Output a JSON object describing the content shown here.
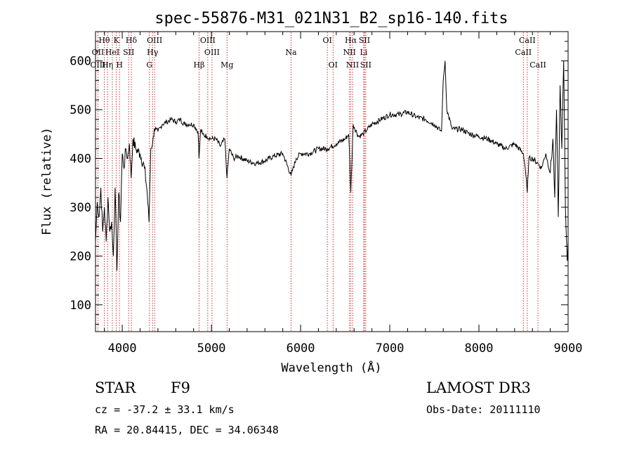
{
  "chart_data": {
    "type": "line",
    "title": "spec-55876-M31_021N31_B2_sp16-140.fits",
    "xlabel": "Wavelength (Å)",
    "ylabel": "Flux (relative)",
    "xlim": [
      3700,
      9000
    ],
    "ylim": [
      45,
      660
    ],
    "xticks": [
      4000,
      5000,
      6000,
      7000,
      8000,
      9000
    ],
    "yticks": [
      100,
      200,
      300,
      400,
      500,
      600
    ],
    "grid": false,
    "line_color": "#000000",
    "marker_color": "#c00000",
    "spectral_lines": [
      {
        "label": "Hθ",
        "wavelength": 3798,
        "row": 0
      },
      {
        "label": "K",
        "wavelength": 3934,
        "row": 0
      },
      {
        "label": "Hδ",
        "wavelength": 4102,
        "row": 0
      },
      {
        "label": "OIII",
        "wavelength": 4363,
        "row": 0
      },
      {
        "label": "OIII",
        "wavelength": 4959,
        "row": 0
      },
      {
        "label": "OI",
        "wavelength": 6300,
        "row": 0
      },
      {
        "label": "Hα",
        "wavelength": 6563,
        "row": 0
      },
      {
        "label": "SII",
        "wavelength": 6716,
        "row": 0
      },
      {
        "label": "CaII",
        "wavelength": 8542,
        "row": 0
      },
      {
        "label": "OII",
        "wavelength": 3727,
        "row": 1
      },
      {
        "label": "HeI",
        "wavelength": 3889,
        "row": 1
      },
      {
        "label": "SII",
        "wavelength": 4072,
        "row": 1
      },
      {
        "label": "Hγ",
        "wavelength": 4340,
        "row": 1
      },
      {
        "label": "OIII",
        "wavelength": 5007,
        "row": 1
      },
      {
        "label": "Na",
        "wavelength": 5893,
        "row": 1
      },
      {
        "label": "NII",
        "wavelength": 6548,
        "row": 1
      },
      {
        "label": "Li",
        "wavelength": 6708,
        "row": 1
      },
      {
        "label": "CaII",
        "wavelength": 8498,
        "row": 1
      },
      {
        "label": "OIII",
        "wavelength": 3727,
        "row": 2
      },
      {
        "label": "Hη",
        "wavelength": 3835,
        "row": 2
      },
      {
        "label": "H",
        "wavelength": 3969,
        "row": 2
      },
      {
        "label": "G",
        "wavelength": 4305,
        "row": 2
      },
      {
        "label": "Hβ",
        "wavelength": 4861,
        "row": 2
      },
      {
        "label": "Mg",
        "wavelength": 5175,
        "row": 2
      },
      {
        "label": "OI",
        "wavelength": 6364,
        "row": 2
      },
      {
        "label": "NII",
        "wavelength": 6583,
        "row": 2
      },
      {
        "label": "SII",
        "wavelength": 6731,
        "row": 2
      },
      {
        "label": "CaII",
        "wavelength": 8662,
        "row": 2
      }
    ],
    "series": [
      {
        "x": [
          3700,
          3720,
          3740,
          3760,
          3780,
          3800,
          3820,
          3840,
          3860,
          3880,
          3900,
          3920,
          3940,
          3960,
          3980,
          4000,
          4020,
          4040,
          4060,
          4080,
          4100,
          4120,
          4150,
          4200,
          4250,
          4280,
          4300,
          4320,
          4340,
          4360,
          4380,
          4400,
          4450,
          4500,
          4550,
          4600,
          4650,
          4700,
          4750,
          4800,
          4850,
          4861,
          4880,
          4900,
          4950,
          5000,
          5050,
          5100,
          5150,
          5175,
          5200,
          5250,
          5300,
          5400,
          5500,
          5600,
          5700,
          5800,
          5893,
          5950,
          6000,
          6100,
          6200,
          6300,
          6400,
          6500,
          6540,
          6563,
          6590,
          6650,
          6700,
          6750,
          6800,
          6900,
          7000,
          7100,
          7200,
          7300,
          7400,
          7500,
          7580,
          7600,
          7620,
          7640,
          7700,
          7800,
          7900,
          8000,
          8100,
          8200,
          8300,
          8400,
          8498,
          8520,
          8542,
          8560,
          8600,
          8662,
          8700,
          8750,
          8800,
          8830,
          8850,
          8870,
          8890,
          8910,
          8930,
          8950,
          8970,
          8990,
          9000
        ],
        "y": [
          230,
          310,
          280,
          340,
          250,
          300,
          230,
          320,
          250,
          270,
          200,
          340,
          170,
          330,
          270,
          410,
          380,
          420,
          400,
          430,
          360,
          440,
          420,
          410,
          380,
          330,
          270,
          420,
          430,
          460,
          460,
          455,
          470,
          475,
          480,
          475,
          480,
          470,
          470,
          470,
          455,
          400,
          460,
          450,
          445,
          440,
          440,
          425,
          440,
          360,
          420,
          400,
          405,
          395,
          390,
          395,
          405,
          410,
          365,
          400,
          410,
          410,
          420,
          420,
          430,
          440,
          450,
          330,
          470,
          445,
          450,
          460,
          470,
          480,
          490,
          490,
          495,
          485,
          480,
          470,
          455,
          560,
          600,
          500,
          460,
          460,
          450,
          445,
          440,
          430,
          420,
          430,
          410,
          380,
          330,
          400,
          400,
          390,
          380,
          410,
          370,
          440,
          320,
          500,
          280,
          550,
          420,
          600,
          300,
          190,
          230
        ]
      }
    ]
  },
  "footer": {
    "object_class": "STAR",
    "subclass": "F9",
    "survey": "LAMOST DR3",
    "redshift": "cz = -37.2 ± 33.1 km/s",
    "obs_date": "Obs-Date: 20111110",
    "coords": "RA =  20.84415, DEC =  34.06348"
  }
}
